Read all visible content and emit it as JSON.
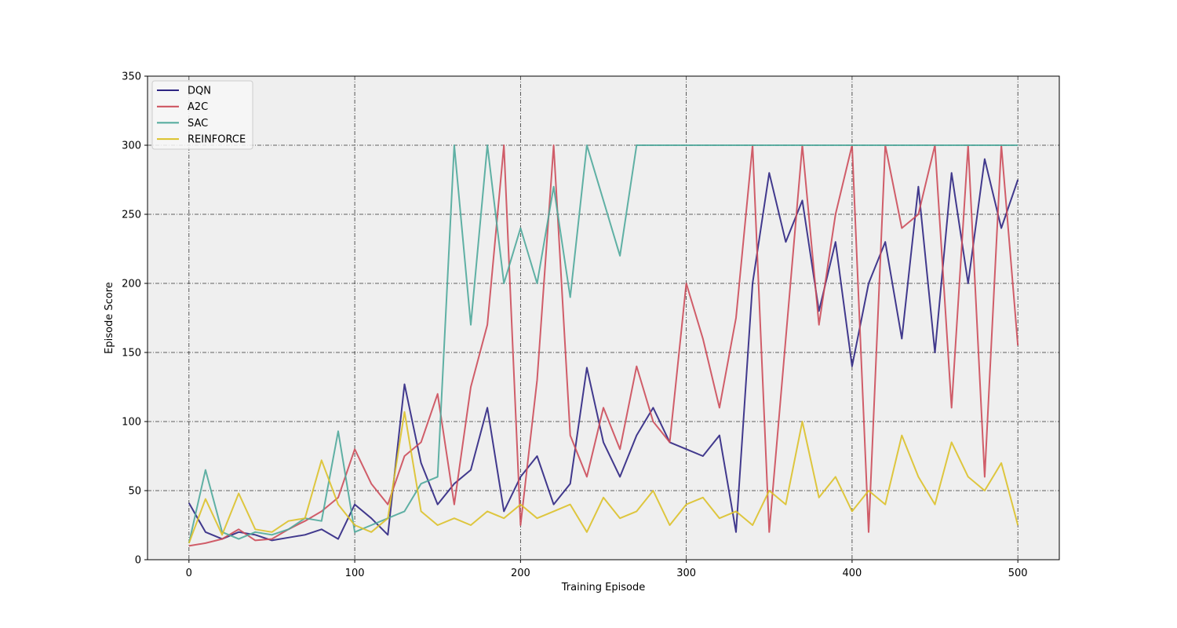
{
  "chart_data": {
    "type": "line",
    "xlabel": "Training Episode",
    "ylabel": "Episode Score",
    "xlim": [
      -25,
      525
    ],
    "ylim": [
      0,
      350
    ],
    "xticks": [
      0,
      100,
      200,
      300,
      400,
      500
    ],
    "yticks": [
      0,
      50,
      100,
      150,
      200,
      250,
      300,
      350
    ],
    "grid": true,
    "legend_position": "top-left",
    "background_color": "#efefef",
    "x": [
      0,
      10,
      20,
      30,
      40,
      50,
      60,
      70,
      80,
      90,
      100,
      110,
      120,
      130,
      140,
      150,
      160,
      170,
      180,
      190,
      200,
      210,
      220,
      230,
      240,
      250,
      260,
      270,
      280,
      290,
      300,
      310,
      320,
      330,
      340,
      350,
      360,
      370,
      380,
      390,
      400,
      410,
      420,
      430,
      440,
      450,
      460,
      470,
      480,
      490,
      500
    ],
    "series": [
      {
        "name": "DQN",
        "color": "#2e2582",
        "values": [
          41,
          20,
          15,
          20,
          18,
          14,
          16,
          18,
          22,
          15,
          40,
          30,
          18,
          127,
          70,
          40,
          55,
          65,
          110,
          35,
          60,
          75,
          40,
          55,
          139,
          85,
          60,
          90,
          110,
          85,
          80,
          75,
          90,
          20,
          200,
          280,
          230,
          260,
          180,
          230,
          140,
          200,
          230,
          160,
          270,
          150,
          280,
          200,
          290,
          240,
          275
        ]
      },
      {
        "name": "A2C",
        "color": "#cc4d5a",
        "values": [
          10,
          12,
          15,
          22,
          14,
          15,
          22,
          28,
          35,
          45,
          80,
          55,
          40,
          75,
          85,
          120,
          40,
          125,
          170,
          300,
          25,
          130,
          300,
          90,
          60,
          110,
          80,
          140,
          100,
          85,
          200,
          160,
          110,
          175,
          300,
          20,
          160,
          300,
          170,
          250,
          300,
          20,
          300,
          240,
          250,
          300,
          110,
          300,
          60,
          300,
          155
        ]
      },
      {
        "name": "SAC",
        "color": "#4fa99b",
        "values": [
          12,
          65,
          20,
          15,
          20,
          18,
          22,
          30,
          28,
          93,
          20,
          25,
          30,
          35,
          55,
          60,
          300,
          170,
          300,
          200,
          240,
          200,
          270,
          190,
          300,
          260,
          220,
          300,
          300,
          300,
          300,
          300,
          300,
          300,
          300,
          300,
          300,
          300,
          300,
          300,
          300,
          300,
          300,
          300,
          300,
          300,
          300,
          300,
          300,
          300,
          300
        ]
      },
      {
        "name": "REINFORCE",
        "color": "#dbc12a",
        "values": [
          12,
          44,
          18,
          48,
          22,
          20,
          28,
          30,
          72,
          40,
          25,
          20,
          30,
          107,
          35,
          25,
          30,
          25,
          35,
          30,
          40,
          30,
          35,
          40,
          20,
          45,
          30,
          35,
          50,
          25,
          40,
          45,
          30,
          35,
          25,
          50,
          40,
          100,
          45,
          60,
          35,
          50,
          40,
          90,
          60,
          40,
          85,
          60,
          50,
          70,
          25
        ]
      }
    ]
  }
}
